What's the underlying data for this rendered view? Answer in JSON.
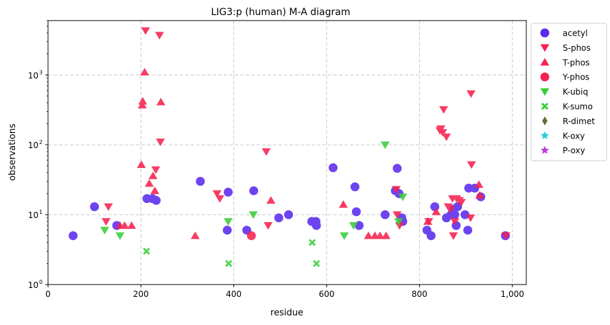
{
  "chart_data": {
    "type": "scatter",
    "title": "LIG3:p (human) M-A diagram",
    "xlabel": "residue",
    "ylabel": "observations",
    "xlim": [
      0,
      1030
    ],
    "ylim": [
      1,
      6000
    ],
    "yscale": "log",
    "x_ticks": [
      0,
      200,
      400,
      600,
      800,
      1000
    ],
    "x_tick_labels": [
      "0",
      "200",
      "400",
      "600",
      "800",
      "1,000"
    ],
    "y_ticks": [
      1,
      10,
      100,
      1000
    ],
    "y_tick_labels": [
      "10",
      "10",
      "10",
      "10"
    ],
    "y_tick_exponents": [
      "0",
      "1",
      "2",
      "3"
    ],
    "grid": true,
    "legend_position": "outside-right",
    "series": [
      {
        "name": "acetyl",
        "marker": "circle",
        "color": "#5b2bee",
        "points": [
          [
            54,
            5
          ],
          [
            100,
            13
          ],
          [
            148,
            7
          ],
          [
            213,
            17
          ],
          [
            225,
            17
          ],
          [
            233,
            16
          ],
          [
            328,
            30
          ],
          [
            386,
            6
          ],
          [
            388,
            21
          ],
          [
            428,
            6
          ],
          [
            443,
            22
          ],
          [
            497,
            9
          ],
          [
            518,
            10
          ],
          [
            568,
            8
          ],
          [
            577,
            8
          ],
          [
            578,
            7
          ],
          [
            614,
            47
          ],
          [
            661,
            25
          ],
          [
            664,
            11
          ],
          [
            670,
            7
          ],
          [
            726,
            10
          ],
          [
            748,
            22
          ],
          [
            752,
            46
          ],
          [
            756,
            20
          ],
          [
            762,
            9
          ],
          [
            764,
            8
          ],
          [
            816,
            6
          ],
          [
            825,
            5
          ],
          [
            833,
            13
          ],
          [
            858,
            9
          ],
          [
            868,
            10
          ],
          [
            874,
            12
          ],
          [
            876,
            10
          ],
          [
            879,
            7
          ],
          [
            882,
            13
          ],
          [
            898,
            10
          ],
          [
            904,
            6
          ],
          [
            906,
            24
          ],
          [
            919,
            24
          ],
          [
            932,
            18
          ],
          [
            985,
            5
          ]
        ]
      },
      {
        "name": "S-phos",
        "marker": "triangle-down",
        "color": "#f5224f",
        "points": [
          [
            125,
            8
          ],
          [
            130,
            13
          ],
          [
            210,
            4300
          ],
          [
            240,
            3700
          ],
          [
            242,
            110
          ],
          [
            232,
            44
          ],
          [
            370,
            17
          ],
          [
            364,
            20
          ],
          [
            470,
            80
          ],
          [
            474,
            7
          ],
          [
            750,
            23
          ],
          [
            752,
            10
          ],
          [
            757,
            7
          ],
          [
            820,
            8
          ],
          [
            844,
            160
          ],
          [
            846,
            170
          ],
          [
            850,
            150
          ],
          [
            852,
            320
          ],
          [
            858,
            130
          ],
          [
            862,
            13
          ],
          [
            866,
            12
          ],
          [
            871,
            17
          ],
          [
            873,
            5
          ],
          [
            876,
            8
          ],
          [
            880,
            17
          ],
          [
            886,
            16
          ],
          [
            890,
            15
          ],
          [
            911,
            540
          ],
          [
            912,
            52
          ],
          [
            910,
            9
          ],
          [
            986,
            5
          ]
        ]
      },
      {
        "name": "T-phos",
        "marker": "triangle-up",
        "color": "#f5224f",
        "points": [
          [
            155,
            7
          ],
          [
            165,
            7
          ],
          [
            180,
            7
          ],
          [
            201,
            52
          ],
          [
            203,
            370
          ],
          [
            204,
            420
          ],
          [
            208,
            1100
          ],
          [
            218,
            28
          ],
          [
            226,
            36
          ],
          [
            230,
            22
          ],
          [
            243,
            410
          ],
          [
            317,
            5
          ],
          [
            480,
            16
          ],
          [
            636,
            14
          ],
          [
            690,
            5
          ],
          [
            704,
            5
          ],
          [
            715,
            5
          ],
          [
            728,
            5
          ],
          [
            818,
            8
          ],
          [
            836,
            11
          ],
          [
            928,
            27
          ],
          [
            930,
            19
          ]
        ]
      },
      {
        "name": "Y-phos",
        "marker": "circle",
        "color": "#f5224f",
        "points": [
          [
            438,
            5
          ]
        ]
      },
      {
        "name": "K-ubiq",
        "marker": "triangle-down",
        "color": "#3acd3a",
        "points": [
          [
            122,
            6
          ],
          [
            155,
            5
          ],
          [
            388,
            8
          ],
          [
            442,
            10
          ],
          [
            638,
            5
          ],
          [
            658,
            7
          ],
          [
            726,
            100
          ],
          [
            755,
            8
          ],
          [
            764,
            18
          ]
        ]
      },
      {
        "name": "K-sumo",
        "marker": "x",
        "color": "#3acd3a",
        "points": [
          [
            212,
            3
          ],
          [
            389,
            2
          ],
          [
            569,
            4
          ],
          [
            578,
            2
          ]
        ]
      },
      {
        "name": "R-dimet",
        "marker": "diamond",
        "color": "#6b6b3a",
        "points": []
      },
      {
        "name": "K-oxy",
        "marker": "star",
        "color": "#2ecbd6",
        "points": []
      },
      {
        "name": "P-oxy",
        "marker": "star",
        "color": "#c13bdd",
        "points": []
      }
    ]
  }
}
